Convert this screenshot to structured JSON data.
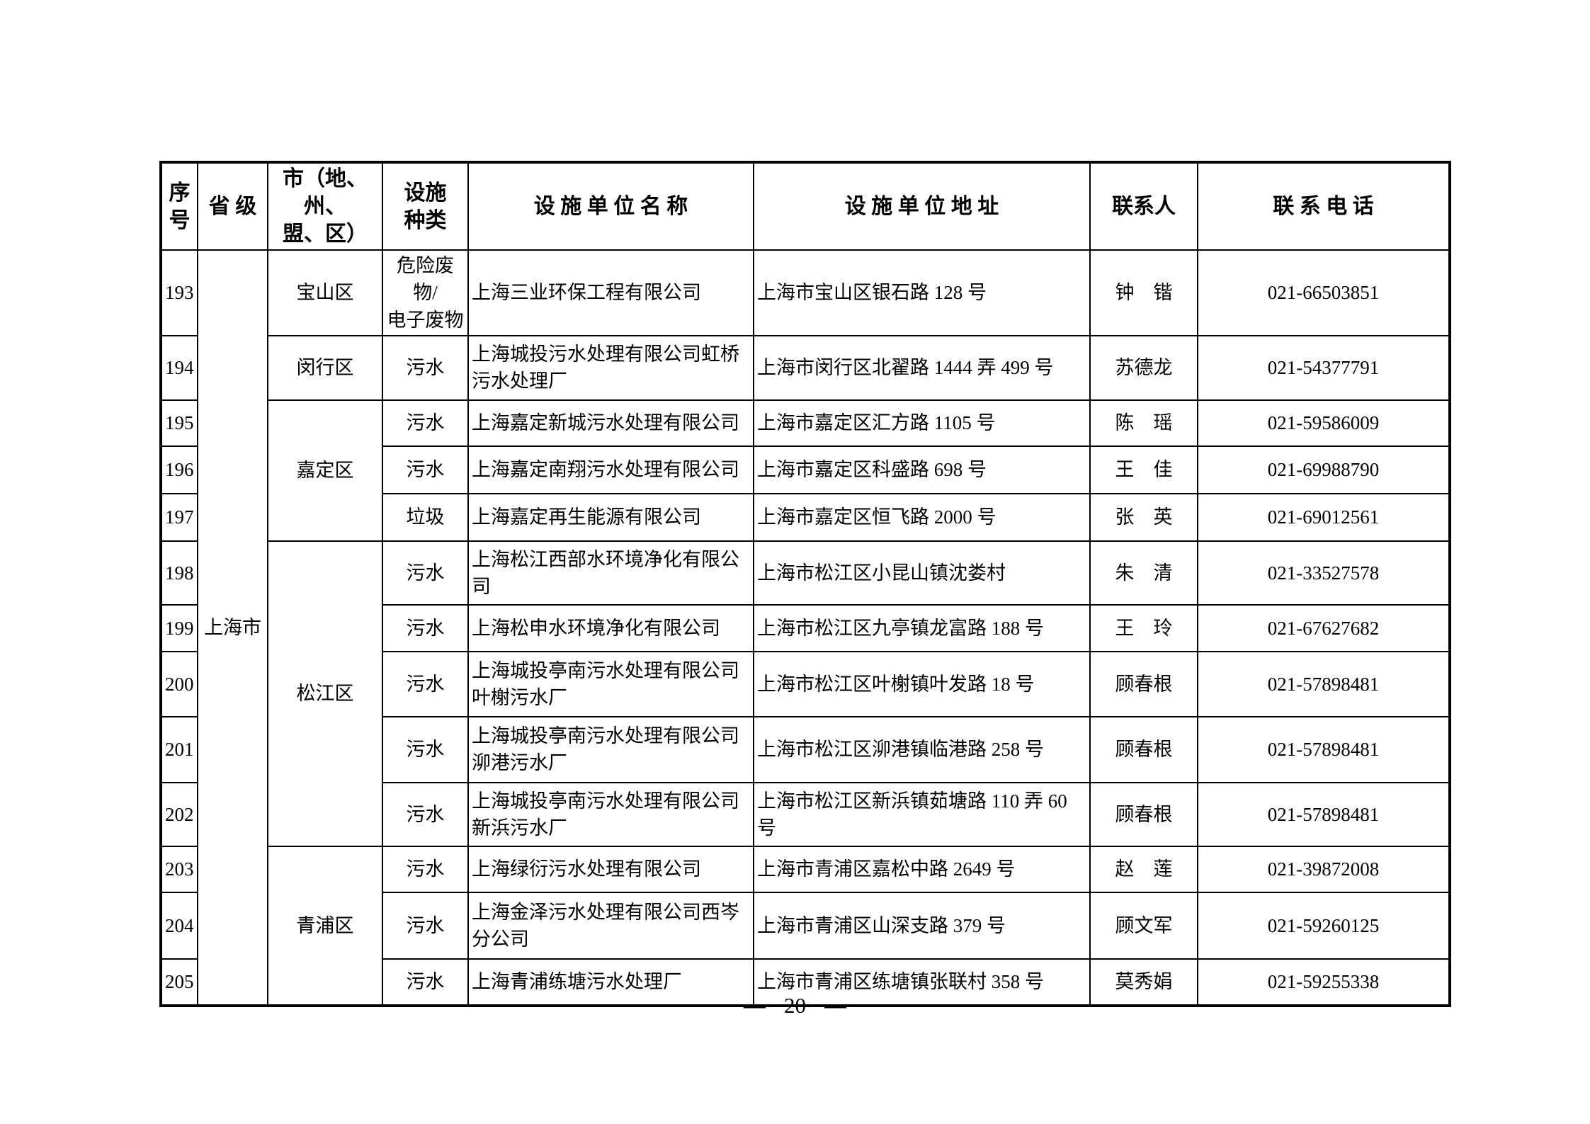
{
  "table": {
    "headers": [
      {
        "key": "seq",
        "label": "序\n号"
      },
      {
        "key": "province",
        "label": "省 级"
      },
      {
        "key": "district",
        "label": "市（地、州、\n盟、区）"
      },
      {
        "key": "type",
        "label": "设施\n种类"
      },
      {
        "key": "name",
        "label": "设 施 单 位 名 称"
      },
      {
        "key": "address",
        "label": "设 施 单 位 地 址"
      },
      {
        "key": "contact",
        "label": "联系人"
      },
      {
        "key": "phone",
        "label": "联 系 电 话"
      }
    ],
    "province": "上海市",
    "rows": [
      {
        "no": "193",
        "district": "宝山区",
        "district_rowspan": 1,
        "type": "危险废物/\n电子废物",
        "name": "上海三业环保工程有限公司",
        "address": "上海市宝山区银石路 128 号",
        "contact": "钟　锴",
        "phone": "021-66503851"
      },
      {
        "no": "194",
        "district": "闵行区",
        "district_rowspan": 1,
        "type": "污水",
        "name": "上海城投污水处理有限公司虹桥污水处理厂",
        "address": "上海市闵行区北翟路 1444 弄 499 号",
        "contact": "苏德龙",
        "phone": "021-54377791"
      },
      {
        "no": "195",
        "district": "嘉定区",
        "district_rowspan": 3,
        "type": "污水",
        "name": "上海嘉定新城污水处理有限公司",
        "address": "上海市嘉定区汇方路 1105 号",
        "contact": "陈　瑶",
        "phone": "021-59586009"
      },
      {
        "no": "196",
        "type": "污水",
        "name": "上海嘉定南翔污水处理有限公司",
        "address": "上海市嘉定区科盛路 698 号",
        "contact": "王　佳",
        "phone": "021-69988790"
      },
      {
        "no": "197",
        "type": "垃圾",
        "name": "上海嘉定再生能源有限公司",
        "address": "上海市嘉定区恒飞路 2000 号",
        "contact": "张　英",
        "phone": "021-69012561"
      },
      {
        "no": "198",
        "district": "松江区",
        "district_rowspan": 5,
        "type": "污水",
        "name": "上海松江西部水环境净化有限公司",
        "address": "上海市松江区小昆山镇沈娄村",
        "contact": "朱　清",
        "phone": "021-33527578"
      },
      {
        "no": "199",
        "type": "污水",
        "name": "上海松申水环境净化有限公司",
        "address": "上海市松江区九亭镇龙富路 188 号",
        "contact": "王　玲",
        "phone": "021-67627682"
      },
      {
        "no": "200",
        "type": "污水",
        "name": "上海城投亭南污水处理有限公司叶榭污水厂",
        "address": "上海市松江区叶榭镇叶发路 18 号",
        "contact": "顾春根",
        "phone": "021-57898481"
      },
      {
        "no": "201",
        "type": "污水",
        "name": "上海城投亭南污水处理有限公司泖港污水厂",
        "address": "上海市松江区泖港镇临港路 258 号",
        "contact": "顾春根",
        "phone": "021-57898481"
      },
      {
        "no": "202",
        "type": "污水",
        "name": "上海城投亭南污水处理有限公司新浜污水厂",
        "address": "上海市松江区新浜镇茹塘路 110 弄 60 号",
        "contact": "顾春根",
        "phone": "021-57898481"
      },
      {
        "no": "203",
        "district": "青浦区",
        "district_rowspan": 3,
        "type": "污水",
        "name": "上海绿衍污水处理有限公司",
        "address": "上海市青浦区嘉松中路 2649 号",
        "contact": "赵　莲",
        "phone": "021-39872008"
      },
      {
        "no": "204",
        "type": "污水",
        "name": "上海金泽污水处理有限公司西岑分公司",
        "address": "上海市青浦区山深支路 379 号",
        "contact": "顾文军",
        "phone": "021-59260125"
      },
      {
        "no": "205",
        "type": "污水",
        "name": "上海青浦练塘污水处理厂",
        "address": "上海市青浦区练塘镇张联村 358 号",
        "contact": "莫秀娟",
        "phone": "021-59255338"
      }
    ]
  },
  "footer": {
    "dash": "—",
    "page_number": "20"
  }
}
